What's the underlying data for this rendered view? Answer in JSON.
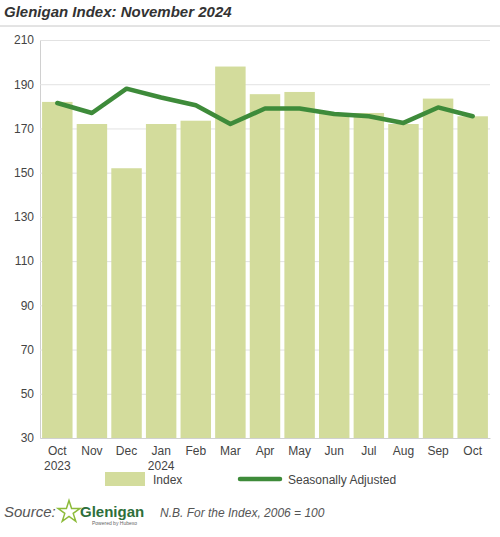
{
  "chart_data": {
    "type": "bar",
    "title": "Glenigan Index: November 2024",
    "categories": [
      "Oct 2023",
      "Nov",
      "Dec",
      "Jan 2024",
      "Feb",
      "Mar",
      "Apr",
      "May",
      "Jun",
      "Jul",
      "Aug",
      "Sep",
      "Oct"
    ],
    "series": [
      {
        "name": "Index",
        "type": "bar",
        "color": "#d3dc9c",
        "values": [
          182,
          172,
          152,
          172,
          173.5,
          198,
          185.5,
          186.5,
          177,
          177,
          172,
          183.5,
          175.5
        ]
      },
      {
        "name": "Seasonally Adjusted",
        "type": "line",
        "color": "#3e8b3a",
        "values": [
          181.5,
          177,
          188,
          184,
          180.5,
          172,
          179,
          179,
          176.5,
          175.5,
          172.5,
          179.5,
          175.5
        ]
      }
    ],
    "ylim": [
      30,
      210
    ],
    "yticks": [
      30,
      50,
      70,
      90,
      110,
      130,
      150,
      170,
      190,
      210
    ],
    "grid": true,
    "legend": "bottom",
    "annotations": [
      "Source:",
      "Glenigan",
      "Powered by Hubexo",
      "N.B. For the Index, 2006 = 100"
    ]
  }
}
